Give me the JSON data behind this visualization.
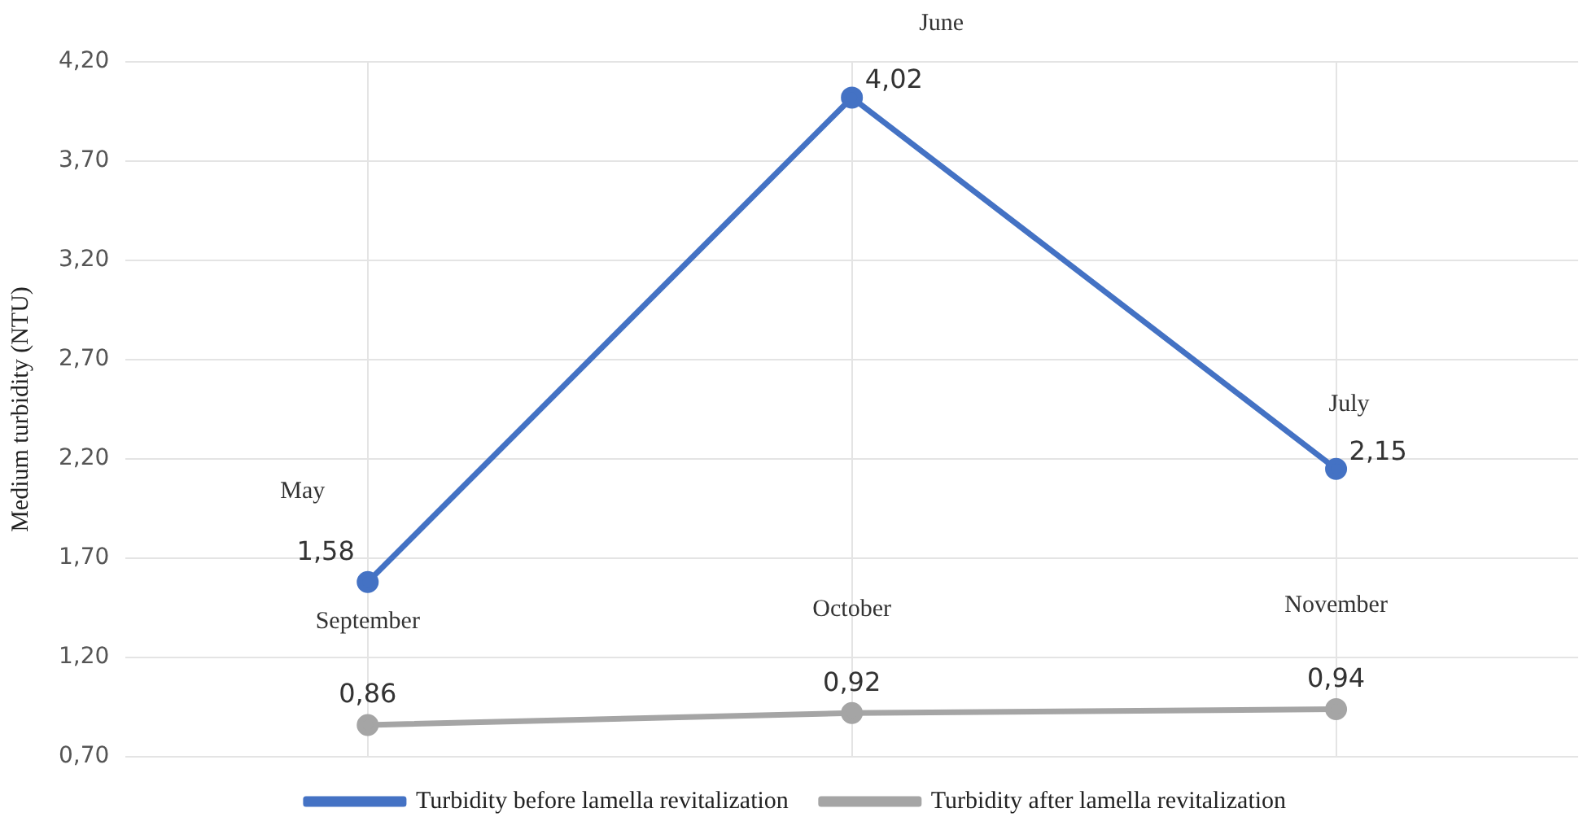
{
  "chart_data": {
    "type": "line",
    "ylabel": "Medium turbidity (NTU)",
    "categories": [
      null,
      null,
      null
    ],
    "series": [
      {
        "name": "Turbidity before lamella revitalization",
        "color": "#4472c4",
        "values": [
          1.58,
          4.02,
          2.15
        ],
        "value_labels": [
          "1,58",
          "4,02",
          "2,15"
        ]
      },
      {
        "name": "Turbidity after lamella revitalization",
        "color": "#a5a5a5",
        "values": [
          0.86,
          0.92,
          0.94
        ],
        "value_labels": [
          "0,86",
          "0,92",
          "0,94"
        ]
      }
    ],
    "annotations": [
      "May",
      "June",
      "July",
      "September",
      "October",
      "November"
    ],
    "ylim": [
      0.7,
      4.2
    ],
    "yticks": [
      {
        "value": 0.7,
        "label": "0,70"
      },
      {
        "value": 1.2,
        "label": "1,20"
      },
      {
        "value": 1.7,
        "label": "1,70"
      },
      {
        "value": 2.2,
        "label": "2,20"
      },
      {
        "value": 2.7,
        "label": "2,70"
      },
      {
        "value": 3.2,
        "label": "3,20"
      },
      {
        "value": 3.7,
        "label": "3,70"
      },
      {
        "value": 4.2,
        "label": "4,20"
      }
    ],
    "grid": true,
    "legend": "bottom",
    "marker": "circle",
    "line_style": "solid"
  }
}
